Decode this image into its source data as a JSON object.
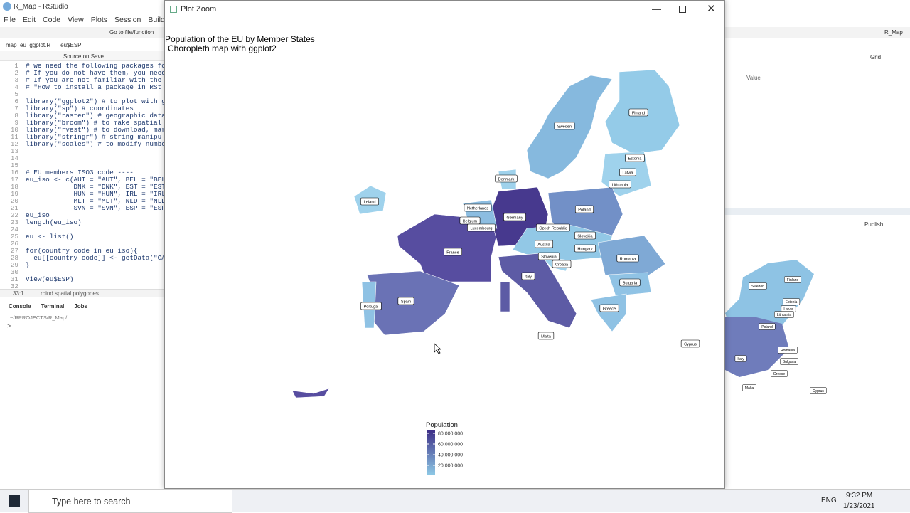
{
  "rstudio": {
    "title": "R_Map - RStudio",
    "menu": [
      "File",
      "Edit",
      "Code",
      "View",
      "Plots",
      "Session",
      "Build"
    ],
    "goto": "Go to file/function",
    "project": "R_Map",
    "editor_tabs": [
      "map_eu_ggplot.R",
      "eu$ESP"
    ],
    "source_on_save": "Source on Save",
    "code_lines": [
      {
        "n": "1",
        "text": "# we need the following packages fo"
      },
      {
        "n": "2",
        "text": "# If you do not have them, you need"
      },
      {
        "n": "3",
        "text": "# If you are not familiar with the"
      },
      {
        "n": "4",
        "text": "# \"How to install a package in RSt"
      },
      {
        "n": "5"
      },
      {
        "n": "6",
        "text": "library(\"ggplot2\") # to plot with g"
      },
      {
        "n": "7",
        "text": "library(\"sp\") # coordinates"
      },
      {
        "n": "8",
        "text": "library(\"raster\") # geographic data"
      },
      {
        "n": "9",
        "text": "library(\"broom\") # to make spatial"
      },
      {
        "n": "10",
        "text": "library(\"rvest\") # to download, mar"
      },
      {
        "n": "11",
        "text": "library(\"stringr\") # string manipu"
      },
      {
        "n": "12",
        "text": "library(\"scales\") # to modify numbe"
      },
      {
        "n": "13"
      },
      {
        "n": "14"
      },
      {
        "n": "15"
      },
      {
        "n": "16",
        "text": "# EU members ISO3 code ----"
      },
      {
        "n": "17",
        "text": "eu_iso <- c(AUT = \"AUT\", BEL = \"BEL"
      },
      {
        "n": "18",
        "text": "            DNK = \"DNK\", EST = \"EST"
      },
      {
        "n": "19",
        "text": "            HUN = \"HUN\", IRL = \"IRL"
      },
      {
        "n": "20",
        "text": "            MLT = \"MLT\", NLD = \"NLD"
      },
      {
        "n": "21",
        "text": "            SVN = \"SVN\", ESP = \"ESP"
      },
      {
        "n": "22",
        "text": "eu_iso"
      },
      {
        "n": "23",
        "text": "length(eu_iso)"
      },
      {
        "n": "24"
      },
      {
        "n": "25",
        "text": "eu <- list()"
      },
      {
        "n": "26"
      },
      {
        "n": "27",
        "text": "for(country_code in eu_iso){"
      },
      {
        "n": "28",
        "text": "  eu[[country_code]] <- getData(\"GA"
      },
      {
        "n": "29",
        "text": "}"
      },
      {
        "n": "30"
      },
      {
        "n": "31",
        "text": "View(eu$ESP)"
      },
      {
        "n": "32"
      }
    ],
    "status": "33:1",
    "status_fn": "rbind spatial polygones",
    "console_tabs": [
      "Console",
      "Terminal",
      "Jobs"
    ],
    "console_path": "~/RPROJECTS/R_Map/",
    "prompt": ">",
    "grid": "Grid",
    "value_header": "Value",
    "publish": "Publish",
    "mini_labels": [
      "Sweden",
      "Finland",
      "Estonia",
      "Latvia",
      "Lithuania",
      "Poland",
      "Romania",
      "Bulgaria",
      "Greece",
      "Malta",
      "Cyprus",
      "Italy"
    ]
  },
  "plot_zoom": {
    "window_title": "Plot Zoom",
    "title": "Population of the EU by Member States",
    "subtitle": "Choropleth map with ggplot2",
    "countries": [
      "Finland",
      "Sweden",
      "Estonia",
      "Latvia",
      "Lithuania",
      "Denmark",
      "Ireland",
      "Netherlands",
      "Poland",
      "Germany",
      "Belgium",
      "Luxembourg",
      "Czech Republic",
      "Slovakia",
      "Austria",
      "Hungary",
      "France",
      "Slovenia",
      "Romania",
      "Croatia",
      "Italy",
      "Bulgaria",
      "Spain",
      "Portugal",
      "Greece",
      "Malta",
      "Cyprus"
    ],
    "legend": {
      "title": "Population",
      "ticks": [
        "80,000,000",
        "60,000,000",
        "40,000,000",
        "20,000,000"
      ]
    }
  },
  "taskbar": {
    "search": "Type here to search",
    "lang": "ENG",
    "time": "9:32 PM",
    "date": "1/23/2021"
  }
}
